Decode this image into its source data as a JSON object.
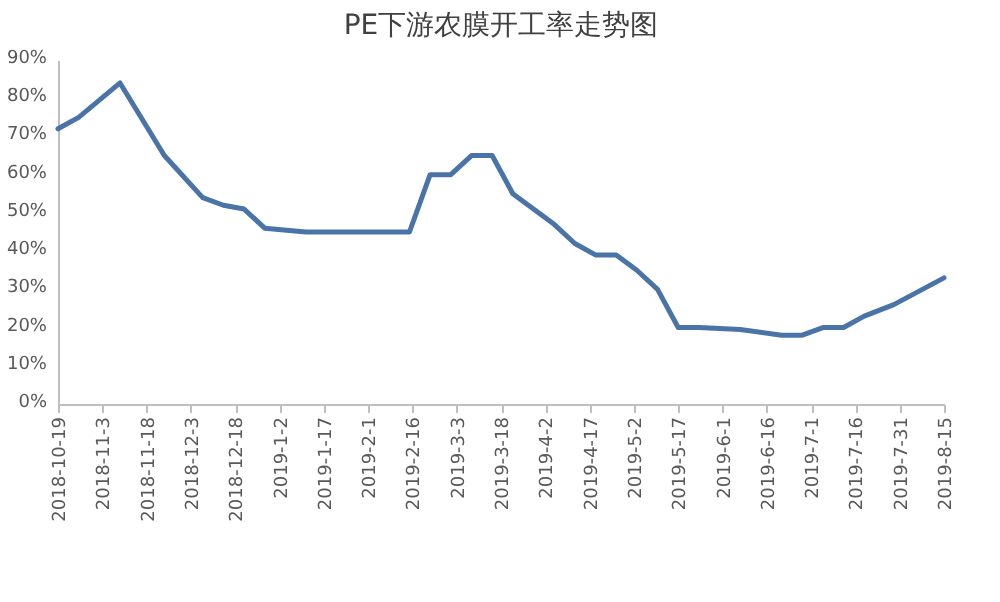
{
  "chart_data": {
    "type": "line",
    "title": "PE下游农膜开工率走势图",
    "x": [
      "2018-10-19",
      "2018-10-26",
      "2018-11-09",
      "2018-11-24",
      "2018-12-07",
      "2018-12-14",
      "2018-12-21",
      "2018-12-28",
      "2019-01-11",
      "2019-02-15",
      "2019-02-22",
      "2019-03-01",
      "2019-03-08",
      "2019-03-15",
      "2019-03-22",
      "2019-03-29",
      "2019-04-05",
      "2019-04-12",
      "2019-04-19",
      "2019-04-26",
      "2019-05-03",
      "2019-05-10",
      "2019-05-17",
      "2019-05-24",
      "2019-06-07",
      "2019-06-21",
      "2019-06-28",
      "2019-07-05",
      "2019-07-12",
      "2019-07-19",
      "2019-07-29",
      "2019-08-15"
    ],
    "series": [
      {
        "color": "#4a74a8",
        "values": [
          72,
          75,
          84,
          65,
          54,
          52,
          51,
          46,
          45,
          45,
          60,
          60,
          65,
          65,
          55,
          51,
          47,
          42,
          39,
          39,
          35,
          30,
          20,
          20,
          19.5,
          18,
          18,
          20,
          20,
          23,
          26,
          33
        ]
      }
    ],
    "xlim": [
      "2018-10-19",
      "2019-08-15"
    ],
    "xticks": [
      {
        "value": "2018-10-19",
        "label": "2018-10-19"
      },
      {
        "value": "2018-11-03",
        "label": "2018-11-3"
      },
      {
        "value": "2018-11-18",
        "label": "2018-11-18"
      },
      {
        "value": "2018-12-03",
        "label": "2018-12-3"
      },
      {
        "value": "2018-12-18",
        "label": "2018-12-18"
      },
      {
        "value": "2019-01-02",
        "label": "2019-1-2"
      },
      {
        "value": "2019-01-17",
        "label": "2019-1-17"
      },
      {
        "value": "2019-02-01",
        "label": "2019-2-1"
      },
      {
        "value": "2019-02-16",
        "label": "2019-2-16"
      },
      {
        "value": "2019-03-03",
        "label": "2019-3-3"
      },
      {
        "value": "2019-03-18",
        "label": "2019-3-18"
      },
      {
        "value": "2019-04-02",
        "label": "2019-4-2"
      },
      {
        "value": "2019-04-17",
        "label": "2019-4-17"
      },
      {
        "value": "2019-05-02",
        "label": "2019-5-2"
      },
      {
        "value": "2019-05-17",
        "label": "2019-5-17"
      },
      {
        "value": "2019-06-01",
        "label": "2019-6-1"
      },
      {
        "value": "2019-06-16",
        "label": "2019-6-16"
      },
      {
        "value": "2019-07-01",
        "label": "2019-7-1"
      },
      {
        "value": "2019-07-16",
        "label": "2019-7-16"
      },
      {
        "value": "2019-07-31",
        "label": "2019-7-31"
      },
      {
        "value": "2019-08-15",
        "label": "2019-8-15"
      }
    ],
    "ylim": [
      0,
      90
    ],
    "yticks": [
      {
        "value": 0,
        "label": "0%"
      },
      {
        "value": 10,
        "label": "10%"
      },
      {
        "value": 20,
        "label": "20%"
      },
      {
        "value": 30,
        "label": "30%"
      },
      {
        "value": 40,
        "label": "40%"
      },
      {
        "value": 50,
        "label": "50%"
      },
      {
        "value": 60,
        "label": "60%"
      },
      {
        "value": 70,
        "label": "70%"
      },
      {
        "value": 80,
        "label": "80%"
      },
      {
        "value": 90,
        "label": "90%"
      }
    ],
    "grid": false,
    "legend": false,
    "marker": "none",
    "line_style": "solid"
  }
}
